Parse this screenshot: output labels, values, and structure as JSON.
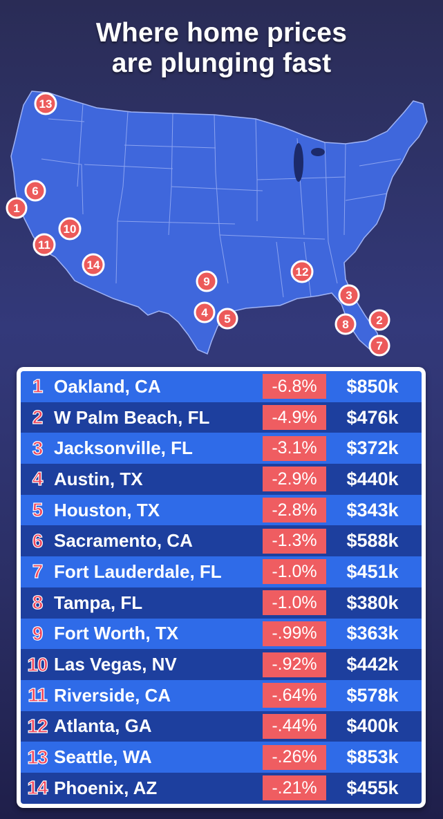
{
  "title": {
    "line1": "Where home prices",
    "line2": "are plunging fast"
  },
  "colors": {
    "map_fill": "#3f67dc",
    "marker_fill": "#ec5a5a",
    "row_light": "#2f6be8",
    "row_dark": "#1d3f9e",
    "percent_fill": "#ef5d61"
  },
  "markers": [
    "1",
    "2",
    "3",
    "4",
    "5",
    "6",
    "7",
    "8",
    "9",
    "10",
    "11",
    "12",
    "13",
    "14"
  ],
  "rows": [
    {
      "rank": "1",
      "city": "Oakland, CA",
      "change": "-6.8%",
      "price": "$850k"
    },
    {
      "rank": "2",
      "city": "W Palm Beach, FL",
      "change": "-4.9%",
      "price": "$476k"
    },
    {
      "rank": "3",
      "city": "Jacksonville, FL",
      "change": "-3.1%",
      "price": "$372k"
    },
    {
      "rank": "4",
      "city": "Austin, TX",
      "change": "-2.9%",
      "price": "$440k"
    },
    {
      "rank": "5",
      "city": "Houston, TX",
      "change": "-2.8%",
      "price": "$343k"
    },
    {
      "rank": "6",
      "city": "Sacramento, CA",
      "change": "-1.3%",
      "price": "$588k"
    },
    {
      "rank": "7",
      "city": "Fort Lauderdale, FL",
      "change": "-1.0%",
      "price": "$451k"
    },
    {
      "rank": "8",
      "city": "Tampa, FL",
      "change": "-1.0%",
      "price": "$380k"
    },
    {
      "rank": "9",
      "city": "Fort Worth, TX",
      "change": "-.99%",
      "price": "$363k"
    },
    {
      "rank": "10",
      "city": "Las Vegas, NV",
      "change": "-.92%",
      "price": "$442k"
    },
    {
      "rank": "11",
      "city": "Riverside, CA",
      "change": "-.64%",
      "price": "$578k"
    },
    {
      "rank": "12",
      "city": "Atlanta, GA",
      "change": "-.44%",
      "price": "$400k"
    },
    {
      "rank": "13",
      "city": "Seattle, WA",
      "change": "-.26%",
      "price": "$853k"
    },
    {
      "rank": "14",
      "city": "Phoenix, AZ",
      "change": "-.21%",
      "price": "$455k"
    }
  ]
}
